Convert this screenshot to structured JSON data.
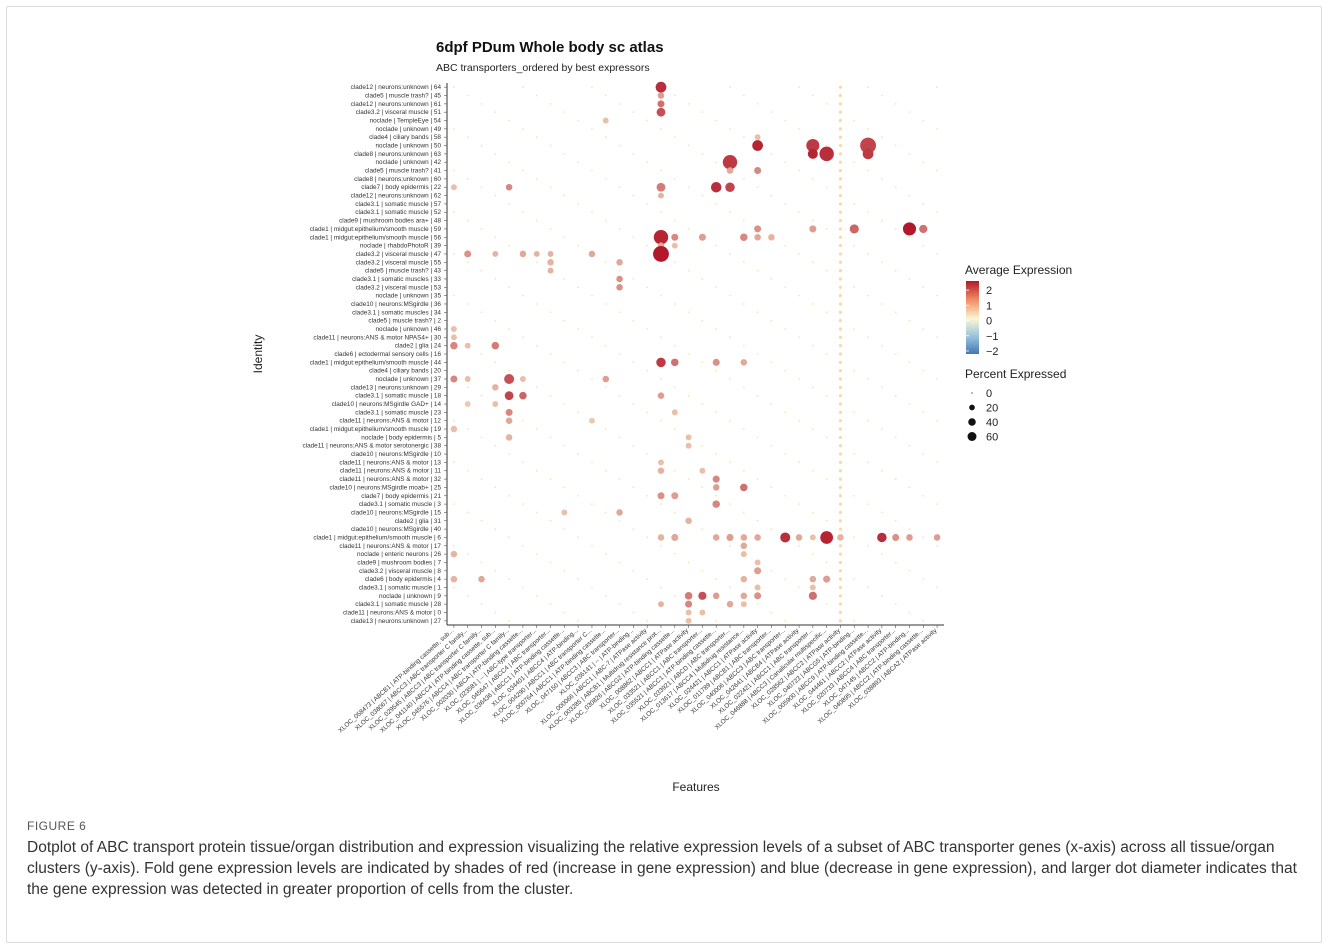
{
  "figure": {
    "label": "FIGURE 6",
    "caption": "Dotplot of ABC transport protein tissue/organ distribution and expression visualizing the relative expression levels of a subset of ABC transporter genes (x-axis) across all tissue/organ clusters (y-axis). Fold gene expression levels are indicated by shades of red (increase in gene expression) and blue (decrease in gene expression), and larger dot diameter indicates that the gene expression was detected in greater proportion of cells from the cluster."
  },
  "chart_data": {
    "type": "dotplot",
    "title": "6dpf PDum Whole body sc atlas",
    "subtitle": "ABC transporters_ordered by best expressors",
    "xlabel": "Features",
    "ylabel": "Identity",
    "colors": {
      "high": "#b2182b",
      "mid": "#fbf6d2",
      "low": "#4575b4"
    },
    "identities": [
      "clade12 | neurons:unknown | 64",
      "clade5 | muscle trash? | 45",
      "clade12 | neurons:unknown | 61",
      "clade3.2 | visceral muscle | 51",
      "noclade | TempleEye | 54",
      "noclade | unknown | 49",
      "clade4 | ciliary bands | 58",
      "noclade | unknown | 50",
      "clade8 | neurons:unknown | 63",
      "noclade | unknown | 42",
      "clade5 | muscle trash? | 41",
      "clade8 | neurons:unknown | 60",
      "clade7 | body epidermis | 22",
      "clade12 | neurons:unknown | 62",
      "clade3.1 | somatic muscle | 57",
      "clade3.1 | somatic muscle | 52",
      "clade9 | mushroom bodies ara+ | 48",
      "clade1 | midgut:epithelium/smooth muscle | 59",
      "clade1 | midgut:epithelium/smooth muscle | 56",
      "noclade | rhabdoPhotoR | 39",
      "clade3.2 | visceral muscle | 47",
      "clade3.2 | visceral muscle | 55",
      "clade5 | muscle trash? | 43",
      "clade3.1 | somatic muscles | 33",
      "clade3.2 | visceral muscle | 53",
      "noclade | unknown | 35",
      "clade10 | neurons:MSgirdle | 36",
      "clade3.1 | somatic muscles | 34",
      "clade5 | muscle trash? | 2",
      "noclade | unknown | 46",
      "clade11 | neurons:ANS & motor NPAS4+ | 30",
      "clade2 | glia | 24",
      "clade6 | ectodermal sensory cells | 16",
      "clade1 | midgut:epithelium/smooth muscle | 44",
      "clade4 | ciliary bands | 20",
      "noclade | unknown | 37",
      "clade13 | neurons:unknown | 29",
      "clade3.1 | somatic muscle | 18",
      "clade10 | neurons:MSgirdle GAD+ | 14",
      "clade3.1 | somatic muscle | 23",
      "clade11 | neurons:ANS & motor | 12",
      "clade1 | midgut:epithelium/smooth muscle | 19",
      "noclade | body epidermis | 5",
      "clade11 | neurons:ANS & motor serotonergic | 38",
      "clade10 | neurons:MSgirdle | 10",
      "clade11 | neurons:ANS & motor | 13",
      "clade11 | neurons:ANS & motor | 11",
      "clade11 | neurons:ANS & motor | 32",
      "clade10 | neurons:MSgirdle moab+ | 25",
      "clade7 | body epidermis | 21",
      "clade3.1 | somatic muscle | 3",
      "clade10 | neurons:MSgirdle | 15",
      "clade2 | glia | 31",
      "clade10 | neurons:MSgirdle | 40",
      "clade1 | midgut:epithelium/smooth muscle | 6",
      "clade11 | neurons:ANS & motor | 17",
      "noclade | enteric neurons | 26",
      "clade9 | mushroom bodies | 7",
      "clade3.2 | visceral muscle | 8",
      "clade6 | body epidermis | 4",
      "clade3.1 | somatic muscle | 1",
      "noclade | unknown | 9",
      "clade3.1 | somatic muscle | 28",
      "clade11 | neurons:ANS & motor | 0",
      "clade13 | neurons:unknown | 27"
    ],
    "features": [
      "XLOC_058473 | ABCB1 | ATP-binding cassette, sub...",
      "XLOC_038067 | ABCC3 | ABC transporter C family...",
      "XLOC_029545 | ABCC3 | ABC transporter C family...",
      "XLOC_041140 | ABCC4 | ATP-binding cassette, sub...",
      "XLOC_045576 | ABCC4 | ABC transporter C family...",
      "XLOC_002030 | ABCA | ATP-binding cassette...",
      "XLOC_023581 | -- | ABC-type transporter...",
      "XLOC_045647 | ABCC4 | ABC transporter...",
      "XLOC_036436 | ABCC1 | ATP-binding cassette...",
      "XLOC_034401 | ABCC4 | ATP-binding...",
      "XLOC_004290 | ABCC1 | ABC transporter C...",
      "XLOC_000764 | ABCC1 | ATP-binding cassette...",
      "XLOC_047150 | ABCC3 | ABC transporter...",
      "XLOC_036141 | -- | ATP-binding...",
      "XLOC_000066 | ABCC1 | ABC-7 | ATPase activity",
      "XLOC_003285 | ABCB1 | Multidrug resistance prot...",
      "XLOC_030826 | ABCG2 | ATP-binding cassette...",
      "XLOC_008862 | ABCC1 | ATPase activity",
      "XLOC_033521 | ABCC1 | ABC transporter...",
      "XLOC_035521 | ABCC1 | ATP-binding cassette...",
      "XLOC_033921 | ABCD | ABC transporter...",
      "XLOC_013617 | ABCC4 | Multidrug resistance...",
      "XLOC_024421 | ABCC1 | ATPase activity",
      "XLOC_011789 | ABCB1 | ABC transporter...",
      "XLOC_040006 | ABCC3 | ABC transporter...",
      "XLOC_042641 | ABCB4 | ATPase activity",
      "XLOC_022421 | ABCC1 | ABC transporter...",
      "XLOC_046888 | ABCC3 | Canalicular multispecific...",
      "XLOC_028562 | ABCC2 | ATPase activity",
      "XLOC_040723 | ABCG5 | ATP-binding...",
      "XLOC_005900 | ABCC9 | ATP-binding cassette...",
      "XLOC_044461 | ABCC2 | ATPase activity",
      "XLOC_020733 | ABCC4 | ABC transporter...",
      "XLOC_047145 | ABCC2 | ATP-binding...",
      "XLOC_040895 | ABCC2 | ATP-binding cassette...",
      "XLOC_038893 | ABCA2 | ATPase activity"
    ],
    "legend_color": {
      "title": "Average Expression",
      "ticks": [
        "2",
        "1",
        "0",
        "−1",
        "−2"
      ],
      "range": [
        -2.2,
        2.6
      ]
    },
    "legend_size": {
      "title": "Percent Expressed",
      "ticks": [
        "0",
        "20",
        "40",
        "60"
      ]
    },
    "dots": [
      [
        0,
        15,
        30,
        1.8
      ],
      [
        1,
        15,
        8,
        0.8
      ],
      [
        2,
        15,
        10,
        1.2
      ],
      [
        3,
        15,
        18,
        1.5
      ],
      [
        4,
        11,
        6,
        0.5
      ],
      [
        6,
        22,
        6,
        0.5
      ],
      [
        7,
        26,
        48,
        1.7
      ],
      [
        7,
        30,
        75,
        1.6
      ],
      [
        7,
        22,
        30,
        1.9
      ],
      [
        8,
        27,
        60,
        1.8
      ],
      [
        8,
        30,
        30,
        1.7
      ],
      [
        8,
        26,
        25,
        1.9
      ],
      [
        9,
        20,
        60,
        1.7
      ],
      [
        10,
        20,
        8,
        0.7
      ],
      [
        10,
        22,
        10,
        1.0
      ],
      [
        12,
        0,
        6,
        0.5
      ],
      [
        12,
        4,
        8,
        1.0
      ],
      [
        12,
        15,
        18,
        1.1
      ],
      [
        12,
        19,
        28,
        1.8
      ],
      [
        12,
        20,
        22,
        1.6
      ],
      [
        13,
        15,
        6,
        0.6
      ],
      [
        17,
        26,
        10,
        0.8
      ],
      [
        17,
        29,
        20,
        1.3
      ],
      [
        17,
        33,
        48,
        2.0
      ],
      [
        17,
        34,
        15,
        1.2
      ],
      [
        17,
        22,
        10,
        0.9
      ],
      [
        18,
        15,
        60,
        1.9
      ],
      [
        18,
        16,
        10,
        1.0
      ],
      [
        18,
        18,
        10,
        0.8
      ],
      [
        18,
        21,
        12,
        1.0
      ],
      [
        18,
        22,
        8,
        0.7
      ],
      [
        18,
        23,
        8,
        0.6
      ],
      [
        19,
        15,
        8,
        0.7
      ],
      [
        19,
        16,
        6,
        0.5
      ],
      [
        20,
        15,
        75,
        2.2
      ],
      [
        20,
        10,
        8,
        0.7
      ],
      [
        20,
        7,
        6,
        0.6
      ],
      [
        20,
        6,
        6,
        0.6
      ],
      [
        20,
        5,
        8,
        0.7
      ],
      [
        20,
        3,
        6,
        0.6
      ],
      [
        20,
        1,
        10,
        0.9
      ],
      [
        21,
        7,
        8,
        0.6
      ],
      [
        21,
        12,
        8,
        0.7
      ],
      [
        22,
        7,
        6,
        0.6
      ],
      [
        23,
        12,
        8,
        0.9
      ],
      [
        24,
        12,
        8,
        0.9
      ],
      [
        29,
        0,
        6,
        0.5
      ],
      [
        30,
        0,
        6,
        0.5
      ],
      [
        31,
        1,
        6,
        0.5
      ],
      [
        31,
        0,
        12,
        1.0
      ],
      [
        31,
        3,
        12,
        1.1
      ],
      [
        33,
        15,
        22,
        1.7
      ],
      [
        33,
        16,
        12,
        1.2
      ],
      [
        33,
        19,
        10,
        0.9
      ],
      [
        33,
        21,
        8,
        0.7
      ],
      [
        35,
        0,
        10,
        1.0
      ],
      [
        35,
        1,
        6,
        0.5
      ],
      [
        35,
        4,
        25,
        1.5
      ],
      [
        35,
        5,
        6,
        0.5
      ],
      [
        35,
        11,
        8,
        0.8
      ],
      [
        36,
        3,
        8,
        0.6
      ],
      [
        37,
        5,
        12,
        1.3
      ],
      [
        37,
        4,
        18,
        1.6
      ],
      [
        37,
        15,
        8,
        0.8
      ],
      [
        38,
        1,
        6,
        0.4
      ],
      [
        38,
        3,
        6,
        0.5
      ],
      [
        39,
        4,
        10,
        1.0
      ],
      [
        39,
        16,
        6,
        0.5
      ],
      [
        40,
        10,
        6,
        0.4
      ],
      [
        40,
        4,
        8,
        0.7
      ],
      [
        41,
        0,
        8,
        0.5
      ],
      [
        42,
        17,
        6,
        0.5
      ],
      [
        42,
        4,
        8,
        0.6
      ],
      [
        43,
        17,
        6,
        0.5
      ],
      [
        45,
        15,
        6,
        0.5
      ],
      [
        46,
        18,
        6,
        0.5
      ],
      [
        46,
        15,
        8,
        0.6
      ],
      [
        47,
        19,
        10,
        1.0
      ],
      [
        48,
        21,
        12,
        1.2
      ],
      [
        48,
        19,
        8,
        0.8
      ],
      [
        49,
        15,
        10,
        0.9
      ],
      [
        49,
        16,
        10,
        0.8
      ],
      [
        50,
        19,
        12,
        1.0
      ],
      [
        51,
        8,
        6,
        0.5
      ],
      [
        51,
        12,
        8,
        0.7
      ],
      [
        52,
        17,
        8,
        0.6
      ],
      [
        54,
        15,
        8,
        0.6
      ],
      [
        54,
        16,
        10,
        0.7
      ],
      [
        54,
        19,
        8,
        0.7
      ],
      [
        54,
        20,
        10,
        0.8
      ],
      [
        54,
        21,
        8,
        0.7
      ],
      [
        54,
        22,
        8,
        0.7
      ],
      [
        54,
        24,
        25,
        1.8
      ],
      [
        54,
        25,
        8,
        0.7
      ],
      [
        54,
        26,
        6,
        0.5
      ],
      [
        54,
        27,
        45,
        1.9
      ],
      [
        54,
        28,
        8,
        0.6
      ],
      [
        54,
        31,
        22,
        1.8
      ],
      [
        54,
        32,
        10,
        0.9
      ],
      [
        54,
        33,
        8,
        0.8
      ],
      [
        54,
        35,
        8,
        0.8
      ],
      [
        55,
        21,
        8,
        0.7
      ],
      [
        56,
        0,
        8,
        0.6
      ],
      [
        56,
        21,
        6,
        0.5
      ],
      [
        57,
        22,
        6,
        0.5
      ],
      [
        58,
        22,
        10,
        0.8
      ],
      [
        59,
        0,
        8,
        0.6
      ],
      [
        59,
        2,
        8,
        0.7
      ],
      [
        59,
        21,
        8,
        0.6
      ],
      [
        59,
        26,
        8,
        0.7
      ],
      [
        59,
        27,
        10,
        0.8
      ],
      [
        60,
        26,
        6,
        0.5
      ],
      [
        60,
        22,
        6,
        0.5
      ],
      [
        61,
        17,
        12,
        1.1
      ],
      [
        61,
        18,
        15,
        1.5
      ],
      [
        61,
        19,
        8,
        0.8
      ],
      [
        61,
        21,
        8,
        0.7
      ],
      [
        61,
        22,
        10,
        0.9
      ],
      [
        61,
        26,
        15,
        1.2
      ],
      [
        62,
        20,
        8,
        0.7
      ],
      [
        62,
        17,
        10,
        1.0
      ],
      [
        62,
        15,
        6,
        0.6
      ],
      [
        62,
        21,
        6,
        0.5
      ],
      [
        63,
        17,
        6,
        0.5
      ],
      [
        63,
        18,
        6,
        0.5
      ],
      [
        64,
        17,
        6,
        0.5
      ]
    ]
  }
}
